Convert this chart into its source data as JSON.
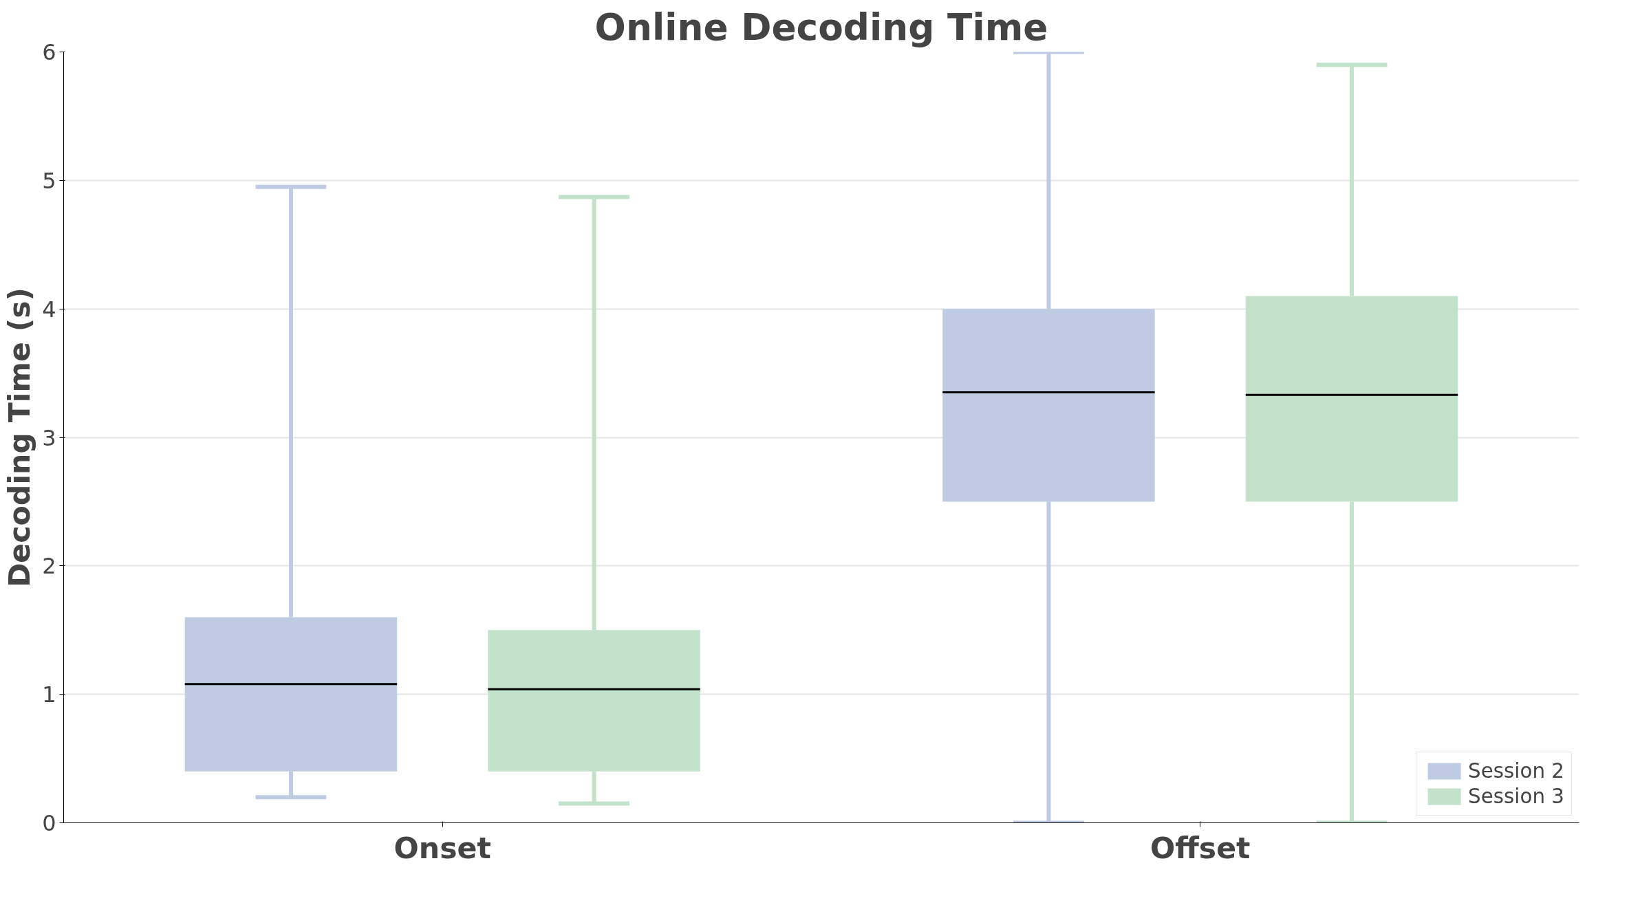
{
  "chart_data": {
    "type": "box",
    "title": "Online Decoding Time",
    "ylabel": "Decoding Time (s)",
    "categories": [
      "Onset",
      "Offset"
    ],
    "ylim": [
      0,
      6
    ],
    "yticks": [
      0,
      1,
      2,
      3,
      4,
      5,
      6
    ],
    "grid": "y",
    "legend": "bottom right",
    "series": [
      {
        "name": "Session 2",
        "color": "#bfcbe3",
        "boxes": [
          {
            "low": 0.2,
            "q1": 0.4,
            "median": 1.08,
            "q3": 1.6,
            "high": 4.95
          },
          {
            "low": 0,
            "q1": 2.5,
            "median": 3.35,
            "q3": 4.0,
            "high": 6
          }
        ]
      },
      {
        "name": "Session 3",
        "color": "#c3e2cb",
        "boxes": [
          {
            "low": 0.15,
            "q1": 0.4,
            "median": 1.04,
            "q3": 1.5,
            "high": 4.87
          },
          {
            "low": 0,
            "q1": 2.5,
            "median": 3.33,
            "q3": 4.1,
            "high": 5.9
          }
        ]
      }
    ]
  }
}
